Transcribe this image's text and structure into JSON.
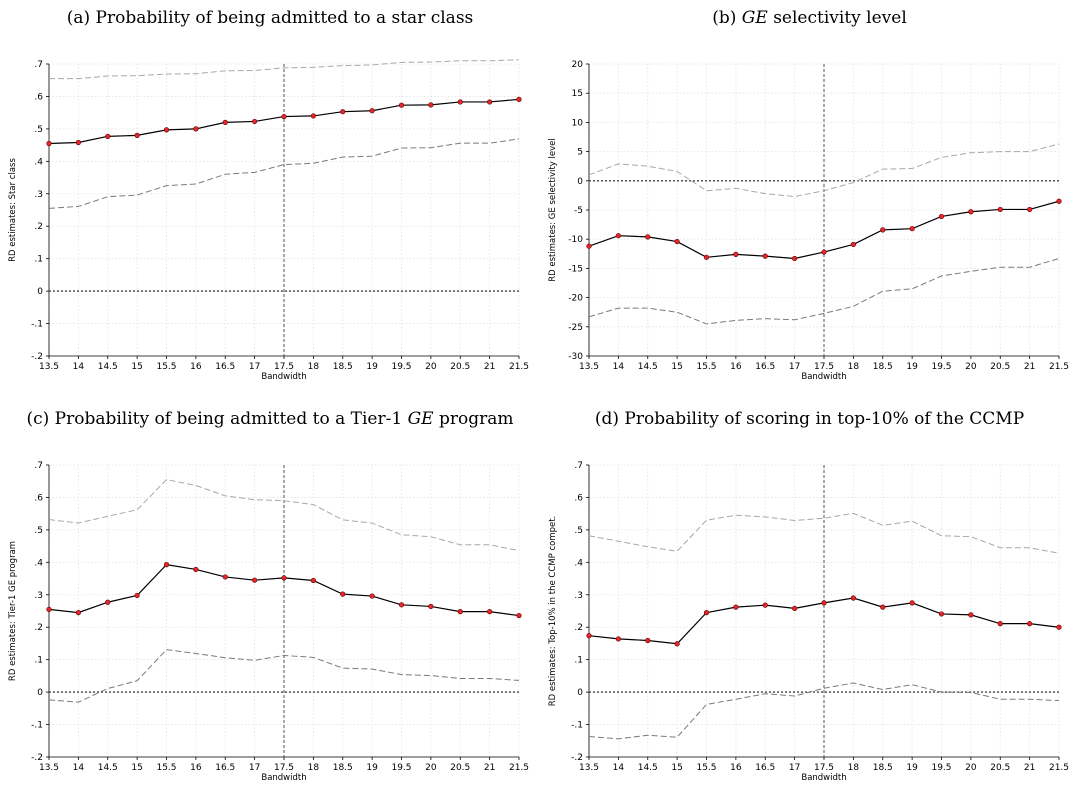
{
  "figure": {
    "panels": [
      {
        "letter": "(a)",
        "title_pre": "Probability of being admitted to a star class",
        "title_em": "",
        "title_post": ""
      },
      {
        "letter": "(b)",
        "title_pre": "",
        "title_em": "GE",
        "title_post": "selectivity level"
      },
      {
        "letter": "(c)",
        "title_pre": "Probability of being admitted to a Tier-1",
        "title_em": "GE",
        "title_post": "program"
      },
      {
        "letter": "(d)",
        "title_pre": "Probability of scoring in top-10% of the CCMP",
        "title_em": "",
        "title_post": ""
      }
    ]
  },
  "chart_data": [
    {
      "type": "line",
      "xlabel": "Bandwidth",
      "ylabel": "RD estimates: Star class",
      "x": [
        13.5,
        14,
        14.5,
        15,
        15.5,
        16,
        16.5,
        17,
        17.5,
        18,
        18.5,
        19,
        19.5,
        20,
        20.5,
        21,
        21.5
      ],
      "x_ticks": [
        "13.5",
        "14",
        "14.5",
        "15",
        "15.5",
        "16",
        "16.5",
        "17",
        "17.5",
        "18",
        "18.5",
        "19",
        "19.5",
        "20",
        "20.5",
        "21",
        "21.5"
      ],
      "ylim": [
        -0.2,
        0.7
      ],
      "y_ticks": [
        {
          "v": -0.2,
          "label": "-.2"
        },
        {
          "v": -0.1,
          "label": "-.1"
        },
        {
          "v": 0,
          "label": "0"
        },
        {
          "v": 0.1,
          "label": ".1"
        },
        {
          "v": 0.2,
          "label": ".2"
        },
        {
          "v": 0.3,
          "label": ".3"
        },
        {
          "v": 0.4,
          "label": ".4"
        },
        {
          "v": 0.5,
          "label": ".5"
        },
        {
          "v": 0.6,
          "label": ".6"
        },
        {
          "v": 0.7,
          "label": ".7"
        }
      ],
      "vline_x": 17.5,
      "hline_y": 0,
      "grid": true,
      "series": [
        {
          "role": "estimate",
          "color": "#000000",
          "marker_color": "#e8262a",
          "values": [
            0.455,
            0.458,
            0.477,
            0.48,
            0.497,
            0.5,
            0.52,
            0.523,
            0.538,
            0.54,
            0.553,
            0.556,
            0.573,
            0.574,
            0.583,
            0.583,
            0.591
          ]
        },
        {
          "role": "upper_ci",
          "color": "#a8a8a8",
          "values": [
            0.655,
            0.655,
            0.663,
            0.664,
            0.669,
            0.67,
            0.679,
            0.68,
            0.688,
            0.69,
            0.695,
            0.697,
            0.705,
            0.706,
            0.71,
            0.71,
            0.713
          ]
        },
        {
          "role": "lower_ci",
          "color": "#7a7a7a",
          "values": [
            0.255,
            0.261,
            0.291,
            0.296,
            0.325,
            0.33,
            0.36,
            0.366,
            0.39,
            0.394,
            0.413,
            0.416,
            0.441,
            0.442,
            0.456,
            0.456,
            0.469
          ]
        }
      ]
    },
    {
      "type": "line",
      "xlabel": "Bandwidth",
      "ylabel": "RD estimates: GE selectivity level",
      "x": [
        13.5,
        14,
        14.5,
        15,
        15.5,
        16,
        16.5,
        17,
        17.5,
        18,
        18.5,
        19,
        19.5,
        20,
        20.5,
        21,
        21.5
      ],
      "x_ticks": [
        "13.5",
        "14",
        "14.5",
        "15",
        "15.5",
        "16",
        "16.5",
        "17",
        "17.5",
        "18",
        "18.5",
        "19",
        "19.5",
        "20",
        "20.5",
        "21",
        "21.5"
      ],
      "ylim": [
        -30,
        20
      ],
      "y_ticks": [
        {
          "v": -30,
          "label": "-30"
        },
        {
          "v": -25,
          "label": "-25"
        },
        {
          "v": -20,
          "label": "-20"
        },
        {
          "v": -15,
          "label": "-15"
        },
        {
          "v": -10,
          "label": "-10"
        },
        {
          "v": -5,
          "label": "-5"
        },
        {
          "v": 0,
          "label": "0"
        },
        {
          "v": 5,
          "label": "5"
        },
        {
          "v": 10,
          "label": "10"
        },
        {
          "v": 15,
          "label": "15"
        },
        {
          "v": 20,
          "label": "20"
        }
      ],
      "vline_x": 17.5,
      "hline_y": 0,
      "grid": true,
      "series": [
        {
          "role": "estimate",
          "color": "#000000",
          "marker_color": "#e8262a",
          "values": [
            -11.2,
            -9.4,
            -9.6,
            -10.4,
            -13.1,
            -12.6,
            -12.9,
            -13.3,
            -12.2,
            -10.9,
            -8.4,
            -8.2,
            -6.1,
            -5.3,
            -4.9,
            -4.9,
            -3.5
          ]
        },
        {
          "role": "upper_ci",
          "color": "#a8a8a8",
          "values": [
            1.0,
            2.9,
            2.5,
            1.6,
            -1.7,
            -1.3,
            -2.2,
            -2.7,
            -1.7,
            -0.3,
            2.0,
            2.1,
            4.0,
            4.8,
            5.0,
            5.0,
            6.3
          ]
        },
        {
          "role": "lower_ci",
          "color": "#7a7a7a",
          "values": [
            -23.3,
            -21.8,
            -21.8,
            -22.5,
            -24.5,
            -23.9,
            -23.6,
            -23.8,
            -22.7,
            -21.5,
            -18.9,
            -18.5,
            -16.3,
            -15.5,
            -14.8,
            -14.8,
            -13.3
          ]
        }
      ]
    },
    {
      "type": "line",
      "xlabel": "Bandwidth",
      "ylabel": "RD estimates: Tier-1 GE program",
      "x": [
        13.5,
        14,
        14.5,
        15,
        15.5,
        16,
        16.5,
        17,
        17.5,
        18,
        18.5,
        19,
        19.5,
        20,
        20.5,
        21,
        21.5
      ],
      "x_ticks": [
        "13.5",
        "14",
        "14.5",
        "15",
        "15.5",
        "16",
        "16.5",
        "17",
        "17.5",
        "18",
        "18.5",
        "19",
        "19.5",
        "20",
        "20.5",
        "21",
        "21.5"
      ],
      "ylim": [
        -0.2,
        0.7
      ],
      "y_ticks": [
        {
          "v": -0.2,
          "label": "-.2"
        },
        {
          "v": -0.1,
          "label": "-.1"
        },
        {
          "v": 0,
          "label": "0"
        },
        {
          "v": 0.1,
          "label": ".1"
        },
        {
          "v": 0.2,
          "label": ".2"
        },
        {
          "v": 0.3,
          "label": ".3"
        },
        {
          "v": 0.4,
          "label": ".4"
        },
        {
          "v": 0.5,
          "label": ".5"
        },
        {
          "v": 0.6,
          "label": ".6"
        },
        {
          "v": 0.7,
          "label": ".7"
        }
      ],
      "vline_x": 17.5,
      "hline_y": 0,
      "grid": true,
      "series": [
        {
          "role": "estimate",
          "color": "#000000",
          "marker_color": "#e8262a",
          "values": [
            0.255,
            0.245,
            0.277,
            0.298,
            0.393,
            0.378,
            0.355,
            0.345,
            0.352,
            0.344,
            0.302,
            0.296,
            0.269,
            0.264,
            0.248,
            0.248,
            0.236
          ]
        },
        {
          "role": "upper_ci",
          "color": "#a8a8a8",
          "values": [
            0.532,
            0.521,
            0.542,
            0.562,
            0.655,
            0.637,
            0.605,
            0.593,
            0.59,
            0.578,
            0.531,
            0.521,
            0.485,
            0.479,
            0.454,
            0.454,
            0.436
          ]
        },
        {
          "role": "lower_ci",
          "color": "#7a7a7a",
          "values": [
            -0.024,
            -0.031,
            0.011,
            0.035,
            0.131,
            0.119,
            0.106,
            0.098,
            0.113,
            0.107,
            0.074,
            0.071,
            0.054,
            0.051,
            0.042,
            0.042,
            0.036
          ]
        }
      ]
    },
    {
      "type": "line",
      "xlabel": "Bandwidth",
      "ylabel": "RD estimates: Top-10% in the CCMP compet.",
      "x": [
        13.5,
        14,
        14.5,
        15,
        15.5,
        16,
        16.5,
        17,
        17.5,
        18,
        18.5,
        19,
        19.5,
        20,
        20.5,
        21,
        21.5
      ],
      "x_ticks": [
        "13.5",
        "14",
        "14.5",
        "15",
        "15.5",
        "16",
        "16.5",
        "17",
        "17.5",
        "18",
        "18.5",
        "19",
        "19.5",
        "20",
        "20.5",
        "21",
        "21.5"
      ],
      "ylim": [
        -0.2,
        0.7
      ],
      "y_ticks": [
        {
          "v": -0.2,
          "label": "-.2"
        },
        {
          "v": -0.1,
          "label": "-.1"
        },
        {
          "v": 0,
          "label": "0"
        },
        {
          "v": 0.1,
          "label": ".1"
        },
        {
          "v": 0.2,
          "label": ".2"
        },
        {
          "v": 0.3,
          "label": ".3"
        },
        {
          "v": 0.4,
          "label": ".4"
        },
        {
          "v": 0.5,
          "label": ".5"
        },
        {
          "v": 0.6,
          "label": ".6"
        },
        {
          "v": 0.7,
          "label": ".7"
        }
      ],
      "vline_x": 17.5,
      "hline_y": 0,
      "grid": true,
      "series": [
        {
          "role": "estimate",
          "color": "#000000",
          "marker_color": "#e8262a",
          "values": [
            0.174,
            0.164,
            0.159,
            0.149,
            0.245,
            0.262,
            0.268,
            0.258,
            0.275,
            0.29,
            0.262,
            0.275,
            0.241,
            0.238,
            0.211,
            0.211,
            0.2
          ]
        },
        {
          "role": "upper_ci",
          "color": "#a8a8a8",
          "values": [
            0.482,
            0.465,
            0.448,
            0.434,
            0.53,
            0.545,
            0.54,
            0.529,
            0.536,
            0.551,
            0.514,
            0.527,
            0.482,
            0.479,
            0.445,
            0.445,
            0.428
          ]
        },
        {
          "role": "lower_ci",
          "color": "#7a7a7a",
          "values": [
            -0.137,
            -0.144,
            -0.133,
            -0.139,
            -0.038,
            -0.022,
            -0.005,
            -0.012,
            0.012,
            0.028,
            0.008,
            0.023,
            0.0,
            -0.001,
            -0.022,
            -0.022,
            -0.026
          ]
        }
      ]
    }
  ]
}
